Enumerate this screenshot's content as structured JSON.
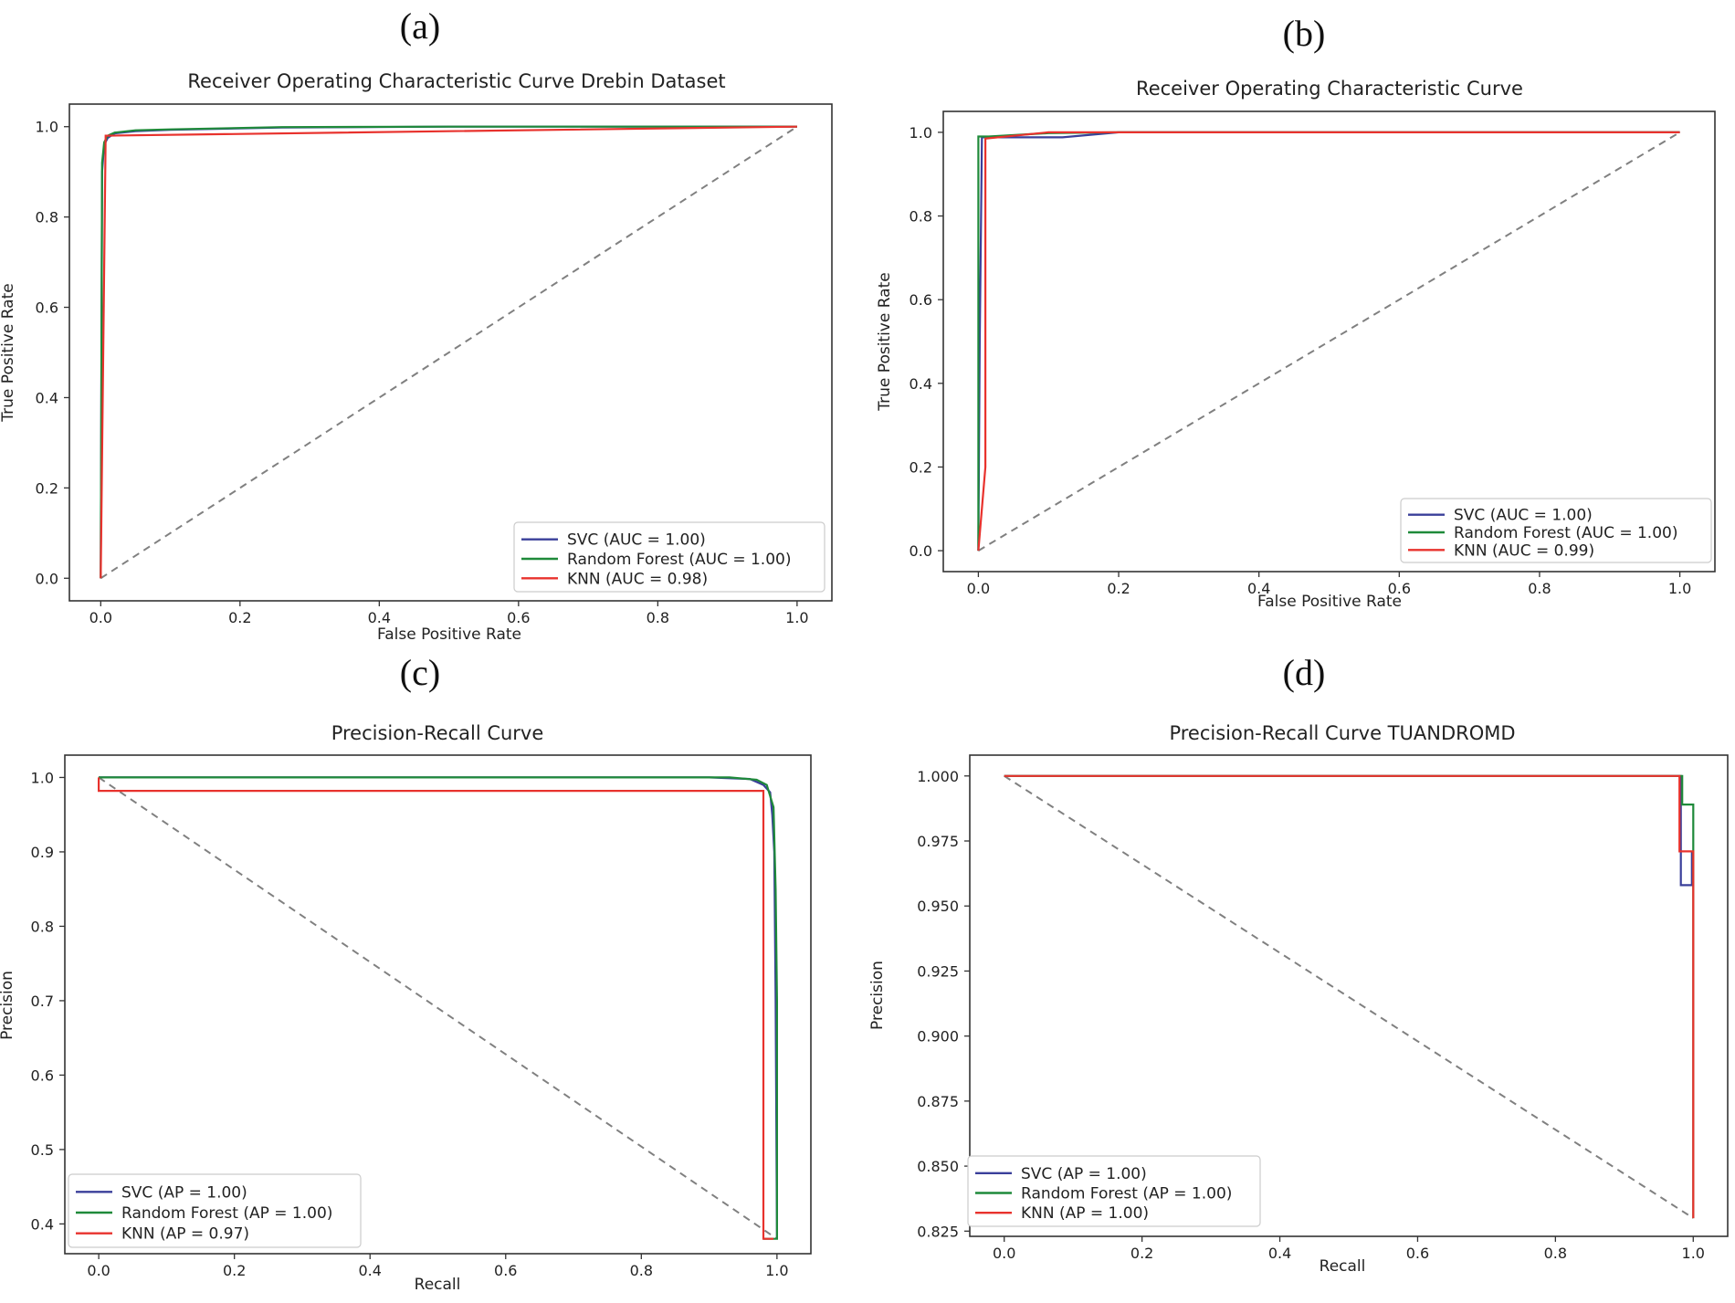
{
  "panel_letters": [
    "(a)",
    "(b)",
    "(c)",
    "(d)"
  ],
  "chart_data": [
    {
      "type": "line",
      "title": "Receiver Operating Characteristic Curve Drebin Dataset",
      "xlabel": "False Positive Rate",
      "ylabel": "True Positive Rate",
      "xlim": [
        -0.045,
        1.05
      ],
      "ylim": [
        -0.05,
        1.05
      ],
      "xticks": [
        0.0,
        0.2,
        0.4,
        0.6,
        0.8,
        1.0
      ],
      "xtick_labels": [
        "0.0",
        "0.2",
        "0.4",
        "0.6",
        "0.8",
        "1.0"
      ],
      "yticks": [
        0.0,
        0.2,
        0.4,
        0.6,
        0.8,
        1.0
      ],
      "ytick_labels": [
        "0.0",
        "0.2",
        "0.4",
        "0.6",
        "0.8",
        "1.0"
      ],
      "grid": false,
      "legend_position": "bottom-right",
      "baseline": {
        "x": [
          0,
          1
        ],
        "y": [
          0,
          1
        ],
        "color": "#808080",
        "dashed": true
      },
      "series": [
        {
          "name": "SVC (AUC = 1.00)",
          "color": "#3a3f9a",
          "x": [
            0,
            0.002,
            0.005,
            0.01,
            0.02,
            0.05,
            0.1,
            0.26,
            0.5,
            1.0
          ],
          "y": [
            0,
            0.9,
            0.96,
            0.975,
            0.985,
            0.99,
            0.993,
            0.998,
            1.0,
            1.0
          ]
        },
        {
          "name": "Random Forest (AUC = 1.00)",
          "color": "#1f8a3a",
          "x": [
            0,
            0.002,
            0.005,
            0.01,
            0.02,
            0.05,
            0.1,
            0.26,
            0.5,
            1.0
          ],
          "y": [
            0,
            0.92,
            0.965,
            0.98,
            0.987,
            0.992,
            0.994,
            0.999,
            1.0,
            1.0
          ]
        },
        {
          "name": "KNN (AUC = 0.98)",
          "color": "#e8322d",
          "x": [
            0,
            0.007,
            1.0
          ],
          "y": [
            0,
            0.98,
            1.0
          ]
        }
      ]
    },
    {
      "type": "line",
      "title": "Receiver Operating Characteristic Curve",
      "xlabel": "False Positive Rate",
      "ylabel": "True Positive Rate",
      "xlim": [
        -0.05,
        1.05
      ],
      "ylim": [
        -0.05,
        1.05
      ],
      "xticks": [
        0.0,
        0.2,
        0.4,
        0.6,
        0.8,
        1.0
      ],
      "xtick_labels": [
        "0.0",
        "0.2",
        "0.4",
        "0.6",
        "0.8",
        "1.0"
      ],
      "yticks": [
        0.0,
        0.2,
        0.4,
        0.6,
        0.8,
        1.0
      ],
      "ytick_labels": [
        "0.0",
        "0.2",
        "0.4",
        "0.6",
        "0.8",
        "1.0"
      ],
      "grid": false,
      "legend_position": "bottom-right",
      "baseline": {
        "x": [
          0,
          1
        ],
        "y": [
          0,
          1
        ],
        "color": "#808080",
        "dashed": true
      },
      "series": [
        {
          "name": "SVC (AUC = 1.00)",
          "color": "#3a3f9a",
          "x": [
            0,
            0.002,
            0.005,
            0.12,
            0.2,
            1.0
          ],
          "y": [
            0,
            0.5,
            0.988,
            0.988,
            1.0,
            1.0
          ]
        },
        {
          "name": "Random Forest (AUC = 1.00)",
          "color": "#1f8a3a",
          "x": [
            0,
            0.0,
            0.015,
            0.1,
            0.2,
            1.0
          ],
          "y": [
            0,
            0.99,
            0.99,
            0.998,
            1.0,
            1.0
          ]
        },
        {
          "name": "KNN (AUC = 0.99)",
          "color": "#e8322d",
          "x": [
            0,
            0.01,
            0.01,
            0.1,
            1.0
          ],
          "y": [
            0,
            0.2,
            0.985,
            1.0,
            1.0
          ]
        }
      ]
    },
    {
      "type": "line",
      "title": "Precision-Recall Curve",
      "xlabel": "Recall",
      "ylabel": "Precision",
      "xlim": [
        -0.05,
        1.05
      ],
      "ylim": [
        0.36,
        1.03
      ],
      "xticks": [
        0.0,
        0.2,
        0.4,
        0.6,
        0.8,
        1.0
      ],
      "xtick_labels": [
        "0.0",
        "0.2",
        "0.4",
        "0.6",
        "0.8",
        "1.0"
      ],
      "yticks": [
        0.4,
        0.5,
        0.6,
        0.7,
        0.8,
        0.9,
        1.0
      ],
      "ytick_labels": [
        "0.4",
        "0.5",
        "0.6",
        "0.7",
        "0.8",
        "0.9",
        "1.0"
      ],
      "grid": false,
      "legend_position": "bottom-left",
      "baseline": {
        "x": [
          0,
          1
        ],
        "y": [
          1.0,
          0.38
        ],
        "color": "#808080",
        "dashed": true
      },
      "series": [
        {
          "name": "SVC (AP = 1.00)",
          "color": "#3a3f9a",
          "x": [
            0,
            0.9,
            0.96,
            0.98,
            0.99,
            0.993,
            0.996,
            0.998,
            1.0
          ],
          "y": [
            1.0,
            1.0,
            0.998,
            0.99,
            0.98,
            0.95,
            0.9,
            0.7,
            0.38
          ]
        },
        {
          "name": "Random Forest (AP = 1.00)",
          "color": "#1f8a3a",
          "x": [
            0,
            0.93,
            0.97,
            0.985,
            0.995,
            0.998,
            1.0,
            1.0,
            0.98
          ],
          "y": [
            1.0,
            1.0,
            0.997,
            0.99,
            0.96,
            0.85,
            0.7,
            0.38,
            0.38
          ]
        },
        {
          "name": "KNN (AP = 0.97)",
          "color": "#e8322d",
          "x": [
            0,
            0.0,
            0.98,
            0.98,
            0.995
          ],
          "y": [
            1.0,
            0.982,
            0.982,
            0.38,
            0.38
          ]
        }
      ]
    },
    {
      "type": "line",
      "title": "Precision-Recall Curve TUANDROMD",
      "xlabel": "Recall",
      "ylabel": "Precision",
      "xlim": [
        -0.05,
        1.05
      ],
      "ylim": [
        0.823,
        1.008
      ],
      "xticks": [
        0.0,
        0.2,
        0.4,
        0.6,
        0.8,
        1.0
      ],
      "xtick_labels": [
        "0.0",
        "0.2",
        "0.4",
        "0.6",
        "0.8",
        "1.0"
      ],
      "yticks": [
        0.825,
        0.85,
        0.875,
        0.9,
        0.925,
        0.95,
        0.975,
        1.0
      ],
      "ytick_labels": [
        "0.825",
        "0.850",
        "0.875",
        "0.900",
        "0.925",
        "0.950",
        "0.975",
        "1.000"
      ],
      "grid": false,
      "legend_position": "bottom-left",
      "baseline": {
        "x": [
          0,
          1
        ],
        "y": [
          1.0,
          0.83
        ],
        "color": "#808080",
        "dashed": true
      },
      "series": [
        {
          "name": "SVC (AP = 1.00)",
          "color": "#3a3f9a",
          "x": [
            0,
            0.982,
            0.982,
            0.998,
            0.998
          ],
          "y": [
            1.0,
            1.0,
            0.958,
            0.958,
            0.971
          ]
        },
        {
          "name": "Random Forest (AP = 1.00)",
          "color": "#1f8a3a",
          "x": [
            0,
            0.984,
            0.984,
            1.0,
            1.0
          ],
          "y": [
            1.0,
            1.0,
            0.989,
            0.989,
            0.83
          ]
        },
        {
          "name": "KNN (AP = 1.00)",
          "color": "#e8322d",
          "x": [
            0,
            0.98,
            0.98,
            1.0,
            1.0
          ],
          "y": [
            1.0,
            1.0,
            0.971,
            0.971,
            0.83
          ]
        }
      ]
    }
  ]
}
